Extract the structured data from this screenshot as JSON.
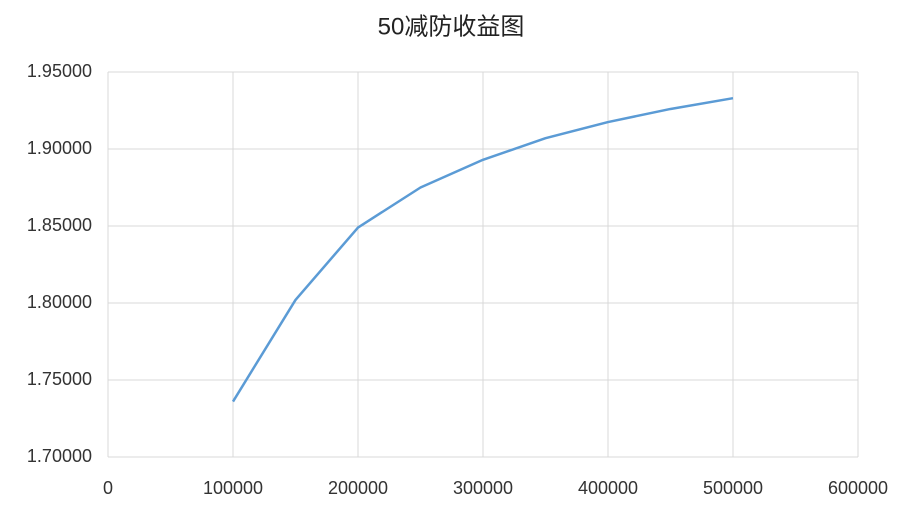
{
  "chart_data": {
    "type": "line",
    "title": "50减防收益图",
    "x": [
      100000,
      150000,
      200000,
      250000,
      300000,
      350000,
      400000,
      450000,
      500000
    ],
    "series": [
      {
        "color": "#5b9bd5",
        "values": [
          1.736,
          1.802,
          1.849,
          1.875,
          1.893,
          1.907,
          1.9175,
          1.926,
          1.933
        ]
      }
    ],
    "xlim": [
      0,
      600000
    ],
    "xticks": [
      0,
      100000,
      200000,
      300000,
      400000,
      500000,
      600000
    ],
    "ylim": [
      1.7,
      1.95
    ],
    "yticks": [
      {
        "value": 1.7,
        "label": "1.70000"
      },
      {
        "value": 1.75,
        "label": "1.75000"
      },
      {
        "value": 1.8,
        "label": "1.80000"
      },
      {
        "value": 1.85,
        "label": "1.85000"
      },
      {
        "value": 1.9,
        "label": "1.90000"
      },
      {
        "value": 1.95,
        "label": "1.95000"
      }
    ],
    "grid": true
  }
}
